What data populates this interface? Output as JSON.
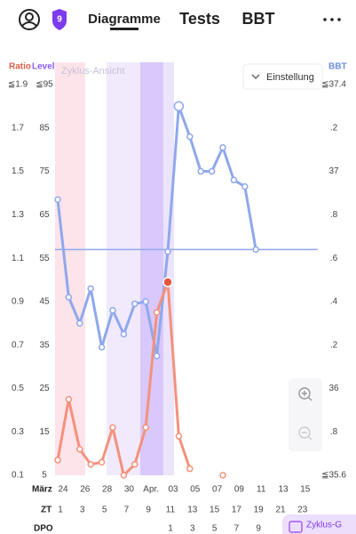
{
  "header": {
    "badge": "9",
    "tabs": [
      "Diagramme",
      "Tests",
      "BBT"
    ]
  },
  "chart_data": {
    "type": "line",
    "legend_hint": "Zyklus-Ansicht",
    "settings_label": "Einstellung",
    "zoom_button_label": "Zyklus-G",
    "axis_titles": {
      "ratio": "Ratio",
      "level": "Level",
      "bbt": "BBT"
    },
    "month_label": "März",
    "categories": [
      "24",
      null,
      "26",
      null,
      "28",
      null,
      "30",
      null,
      "Apr.",
      null,
      "03",
      null,
      "05",
      null,
      "07",
      null,
      "09",
      null,
      "11",
      null,
      "13",
      null,
      "15",
      null
    ],
    "zt_title": "ZT",
    "zt": [
      1,
      null,
      3,
      null,
      5,
      null,
      7,
      null,
      9,
      null,
      11,
      null,
      13,
      null,
      15,
      null,
      17,
      null,
      19,
      null,
      21,
      null,
      23,
      null
    ],
    "dpo_title": "DPO",
    "dpo": [
      null,
      null,
      null,
      null,
      null,
      null,
      null,
      null,
      null,
      null,
      1,
      null,
      3,
      null,
      5,
      null,
      7,
      null,
      9,
      null,
      null,
      null,
      null,
      null
    ],
    "ylim": [
      0.1,
      1.9
    ],
    "yticks": [
      {
        "value": 1.9,
        "label": "≦1.9"
      },
      1.7,
      1.5,
      1.3,
      1.1,
      0.9,
      0.7,
      0.5,
      0.3,
      0.1
    ],
    "level_lim": [
      5,
      95
    ],
    "level_ticks": [
      {
        "value": 95,
        "label": "≦95"
      },
      85,
      75,
      65,
      55,
      45,
      35,
      25,
      15,
      5
    ],
    "y2lim": [
      35.6,
      37.4
    ],
    "y2ticks": [
      {
        "value": 37.4,
        "label": "≦37.4"
      },
      {
        "value": 37.2,
        "label": ".2"
      },
      37,
      {
        "value": 36.8,
        "label": ".8"
      },
      {
        "value": 36.6,
        "label": ".6"
      },
      {
        "value": 36.4,
        "label": ".4"
      },
      {
        "value": 36.2,
        "label": ".2"
      },
      36,
      {
        "value": 35.8,
        "label": ".8"
      },
      {
        "value": 35.6,
        "label": "≦35.6"
      }
    ],
    "coverline": 36.64,
    "series": [
      {
        "name": "BBT",
        "color": "#8fa8ec",
        "axis": "y2",
        "values": [
          36.87,
          36.42,
          36.3,
          36.46,
          36.19,
          36.36,
          36.25,
          36.39,
          36.4,
          36.15,
          36.63,
          37.3,
          37.16,
          37.0,
          37.0,
          37.11,
          36.96,
          36.93,
          36.64,
          null,
          null,
          null,
          null,
          null
        ]
      },
      {
        "name": "Ratio",
        "color": "#f4917c",
        "values": [
          0.17,
          0.45,
          0.22,
          0.15,
          0.16,
          0.32,
          0.1,
          0.15,
          0.32,
          0.85,
          0.99,
          0.28,
          0.13,
          null,
          null,
          0.1,
          null,
          null,
          null,
          null,
          null,
          null,
          null,
          null
        ]
      }
    ]
  }
}
